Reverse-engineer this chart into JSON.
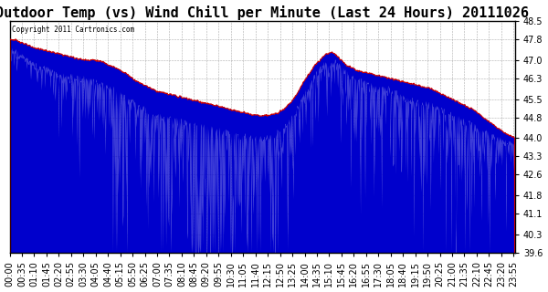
{
  "title": "Outdoor Temp (vs) Wind Chill per Minute (Last 24 Hours) 20111026",
  "copyright_text": "Copyright 2011 Cartronics.com",
  "ylim": [
    39.6,
    48.5
  ],
  "yticks": [
    39.6,
    40.3,
    41.1,
    41.8,
    42.6,
    43.3,
    44.0,
    44.8,
    45.5,
    46.3,
    47.0,
    47.8,
    48.5
  ],
  "background_color": "#ffffff",
  "plot_bg_color": "#ffffff",
  "grid_color": "#999999",
  "line_color_temp": "#cc0000",
  "fill_color": "#0000cc",
  "title_fontsize": 11,
  "tick_fontsize": 7,
  "xlabel_rotation": 90,
  "temp_keyframes_x": [
    0,
    0.5,
    1,
    1.5,
    2,
    2.5,
    3,
    3.5,
    4,
    4.5,
    5,
    5.5,
    6,
    6.5,
    7,
    7.5,
    8,
    8.5,
    9,
    9.5,
    10,
    10.5,
    11,
    11.5,
    12,
    12.5,
    13,
    13.5,
    14,
    14.5,
    15,
    15.25,
    15.5,
    16,
    16.5,
    17,
    17.5,
    18,
    18.5,
    19,
    19.5,
    20,
    20.5,
    21,
    21.5,
    22,
    22.5,
    23,
    23.5,
    24
  ],
  "temp_keyframes_y": [
    47.8,
    47.7,
    47.5,
    47.4,
    47.3,
    47.2,
    47.1,
    47.0,
    47.0,
    46.9,
    46.7,
    46.5,
    46.2,
    46.0,
    45.8,
    45.7,
    45.6,
    45.5,
    45.4,
    45.3,
    45.2,
    45.1,
    45.0,
    44.9,
    44.85,
    44.9,
    45.1,
    45.5,
    46.2,
    46.8,
    47.2,
    47.3,
    47.2,
    46.8,
    46.6,
    46.5,
    46.4,
    46.3,
    46.2,
    46.1,
    46.0,
    45.9,
    45.7,
    45.5,
    45.3,
    45.1,
    44.8,
    44.5,
    44.2,
    44.0
  ],
  "wind_base_x": [
    0,
    0.5,
    1,
    1.5,
    2,
    2.5,
    3,
    3.5,
    4,
    4.5,
    5,
    5.5,
    6,
    6.5,
    7,
    7.5,
    8,
    8.5,
    9,
    9.5,
    10,
    10.5,
    11,
    11.5,
    12,
    12.5,
    13,
    13.5,
    14,
    14.5,
    15,
    15.5,
    16,
    16.5,
    17,
    17.5,
    18,
    18.5,
    19,
    19.5,
    20,
    20.5,
    21,
    21.5,
    22,
    22.5,
    23,
    23.5,
    24
  ],
  "wind_base_y": [
    47.5,
    47.3,
    47.0,
    46.8,
    46.7,
    46.5,
    46.5,
    46.4,
    46.3,
    46.1,
    46.0,
    45.7,
    45.4,
    45.2,
    45.0,
    44.9,
    44.8,
    44.7,
    44.6,
    44.5,
    44.4,
    44.3,
    44.2,
    44.15,
    44.1,
    44.2,
    44.5,
    45.0,
    45.8,
    46.5,
    47.0,
    47.0,
    46.6,
    46.4,
    46.2,
    46.0,
    46.0,
    45.8,
    45.6,
    45.5,
    45.4,
    45.2,
    45.0,
    44.8,
    44.6,
    44.4,
    44.2,
    44.0,
    43.8
  ]
}
